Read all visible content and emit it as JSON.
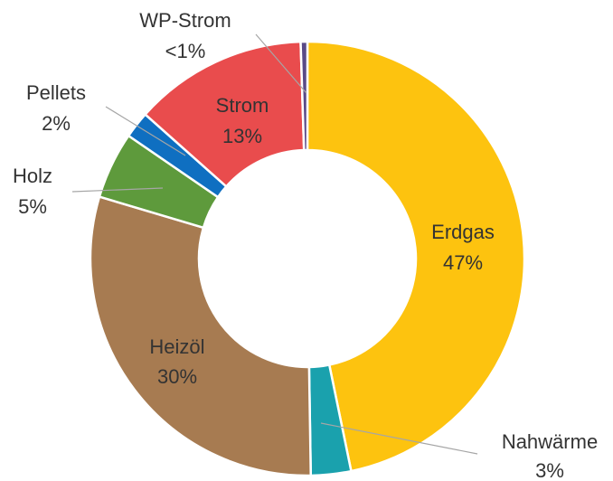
{
  "chart_data": {
    "type": "donut",
    "categories": [
      "Erdgas",
      "Nahwärme",
      "Heizöl",
      "Holz",
      "Pellets",
      "Strom",
      "WP-Strom"
    ],
    "values": [
      47,
      3,
      30,
      5,
      2,
      13,
      0.5
    ],
    "value_labels": [
      "47%",
      "3%",
      "30%",
      "5%",
      "2%",
      "13%",
      "<1%"
    ],
    "colors": [
      "#fdc30f",
      "#1aa1ad",
      "#a77b51",
      "#5e9a3c",
      "#0f6fc1",
      "#e94c4d",
      "#5a4a87"
    ]
  }
}
